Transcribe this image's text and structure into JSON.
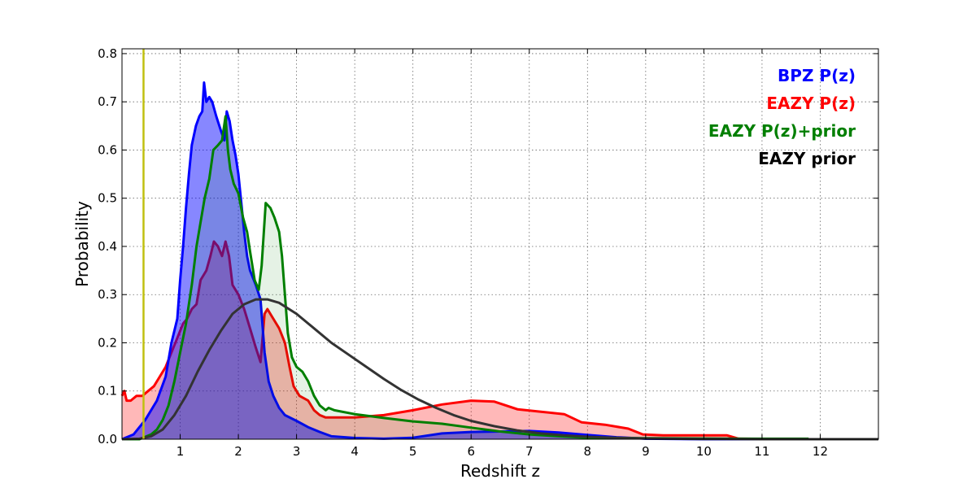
{
  "chart_data": {
    "type": "area",
    "title": "",
    "xlabel": "Redshift z",
    "ylabel": "Probability",
    "xlim": [
      0,
      13
    ],
    "ylim": [
      0,
      0.81
    ],
    "grid": true,
    "legend_position": "top-right",
    "x_ticks": [
      1,
      2,
      3,
      4,
      5,
      6,
      7,
      8,
      9,
      10,
      11,
      12
    ],
    "y_ticks": [
      0.0,
      0.1,
      0.2,
      0.3,
      0.4,
      0.5,
      0.6,
      0.7,
      0.8
    ],
    "x_tick_labels": [
      "1",
      "2",
      "3",
      "4",
      "5",
      "6",
      "7",
      "8",
      "9",
      "10",
      "11",
      "12"
    ],
    "y_tick_labels": [
      "0.0",
      "0.1",
      "0.2",
      "0.3",
      "0.4",
      "0.5",
      "0.6",
      "0.7",
      "0.8"
    ],
    "vline": {
      "x": 0.37,
      "color": "#c0c010"
    },
    "series": [
      {
        "name": "EAZY P(z)",
        "color": "#ff0000",
        "fill": "#ff0000",
        "fill_opacity": 0.28,
        "points": [
          [
            0,
            0.09
          ],
          [
            0.04,
            0.1
          ],
          [
            0.08,
            0.08
          ],
          [
            0.15,
            0.08
          ],
          [
            0.25,
            0.09
          ],
          [
            0.35,
            0.09
          ],
          [
            0.45,
            0.1
          ],
          [
            0.55,
            0.11
          ],
          [
            0.65,
            0.13
          ],
          [
            0.75,
            0.15
          ],
          [
            0.85,
            0.18
          ],
          [
            0.95,
            0.21
          ],
          [
            1.05,
            0.24
          ],
          [
            1.12,
            0.25
          ],
          [
            1.2,
            0.27
          ],
          [
            1.28,
            0.28
          ],
          [
            1.35,
            0.33
          ],
          [
            1.45,
            0.35
          ],
          [
            1.52,
            0.38
          ],
          [
            1.58,
            0.41
          ],
          [
            1.65,
            0.4
          ],
          [
            1.72,
            0.38
          ],
          [
            1.78,
            0.41
          ],
          [
            1.84,
            0.38
          ],
          [
            1.9,
            0.32
          ],
          [
            2.0,
            0.3
          ],
          [
            2.1,
            0.27
          ],
          [
            2.2,
            0.23
          ],
          [
            2.3,
            0.19
          ],
          [
            2.38,
            0.16
          ],
          [
            2.45,
            0.26
          ],
          [
            2.5,
            0.27
          ],
          [
            2.6,
            0.25
          ],
          [
            2.7,
            0.23
          ],
          [
            2.8,
            0.2
          ],
          [
            2.88,
            0.15
          ],
          [
            2.95,
            0.11
          ],
          [
            3.05,
            0.09
          ],
          [
            3.2,
            0.08
          ],
          [
            3.3,
            0.06
          ],
          [
            3.4,
            0.05
          ],
          [
            3.5,
            0.045
          ],
          [
            3.6,
            0.045
          ],
          [
            4.0,
            0.045
          ],
          [
            4.5,
            0.05
          ],
          [
            5.0,
            0.06
          ],
          [
            5.5,
            0.072
          ],
          [
            6.0,
            0.08
          ],
          [
            6.4,
            0.078
          ],
          [
            6.8,
            0.062
          ],
          [
            7.2,
            0.057
          ],
          [
            7.6,
            0.052
          ],
          [
            7.9,
            0.035
          ],
          [
            8.3,
            0.03
          ],
          [
            8.7,
            0.022
          ],
          [
            8.95,
            0.01
          ],
          [
            9.3,
            0.008
          ],
          [
            10.4,
            0.008
          ],
          [
            10.6,
            0.001
          ],
          [
            11.8,
            0.0
          ]
        ]
      },
      {
        "name": "BPZ P(z)",
        "color": "#0000ff",
        "fill": "#0000ff",
        "fill_opacity": 0.47,
        "points": [
          [
            0,
            0.0
          ],
          [
            0.2,
            0.01
          ],
          [
            0.4,
            0.04
          ],
          [
            0.6,
            0.08
          ],
          [
            0.75,
            0.13
          ],
          [
            0.85,
            0.2
          ],
          [
            0.95,
            0.25
          ],
          [
            1.0,
            0.33
          ],
          [
            1.05,
            0.4
          ],
          [
            1.1,
            0.48
          ],
          [
            1.15,
            0.55
          ],
          [
            1.2,
            0.61
          ],
          [
            1.27,
            0.65
          ],
          [
            1.33,
            0.67
          ],
          [
            1.38,
            0.68
          ],
          [
            1.41,
            0.74
          ],
          [
            1.45,
            0.7
          ],
          [
            1.5,
            0.71
          ],
          [
            1.55,
            0.7
          ],
          [
            1.62,
            0.67
          ],
          [
            1.7,
            0.64
          ],
          [
            1.76,
            0.62
          ],
          [
            1.8,
            0.68
          ],
          [
            1.85,
            0.66
          ],
          [
            1.9,
            0.62
          ],
          [
            1.95,
            0.59
          ],
          [
            2.0,
            0.55
          ],
          [
            2.05,
            0.49
          ],
          [
            2.1,
            0.43
          ],
          [
            2.15,
            0.38
          ],
          [
            2.2,
            0.35
          ],
          [
            2.3,
            0.32
          ],
          [
            2.38,
            0.29
          ],
          [
            2.45,
            0.18
          ],
          [
            2.52,
            0.12
          ],
          [
            2.6,
            0.09
          ],
          [
            2.7,
            0.065
          ],
          [
            2.8,
            0.05
          ],
          [
            3.0,
            0.038
          ],
          [
            3.2,
            0.025
          ],
          [
            3.4,
            0.015
          ],
          [
            3.6,
            0.006
          ],
          [
            4.0,
            0.0025
          ],
          [
            4.5,
            0.001
          ],
          [
            5.0,
            0.003
          ],
          [
            5.5,
            0.012
          ],
          [
            6.0,
            0.015
          ],
          [
            6.5,
            0.016
          ],
          [
            7.0,
            0.017
          ],
          [
            7.5,
            0.014
          ],
          [
            8.0,
            0.009
          ],
          [
            8.5,
            0.004
          ],
          [
            9.0,
            0.001
          ],
          [
            10.0,
            0.0
          ],
          [
            13.0,
            0.0
          ]
        ]
      },
      {
        "name": "EAZY P(z)+prior",
        "color": "#007f00",
        "fill": "#007f00",
        "fill_opacity": 0.1,
        "points": [
          [
            0,
            0.0
          ],
          [
            0.3,
            0.0
          ],
          [
            0.5,
            0.01
          ],
          [
            0.6,
            0.02
          ],
          [
            0.7,
            0.04
          ],
          [
            0.8,
            0.07
          ],
          [
            0.9,
            0.12
          ],
          [
            1.0,
            0.18
          ],
          [
            1.1,
            0.24
          ],
          [
            1.2,
            0.32
          ],
          [
            1.28,
            0.4
          ],
          [
            1.35,
            0.45
          ],
          [
            1.42,
            0.5
          ],
          [
            1.5,
            0.54
          ],
          [
            1.57,
            0.6
          ],
          [
            1.65,
            0.61
          ],
          [
            1.72,
            0.62
          ],
          [
            1.78,
            0.67
          ],
          [
            1.82,
            0.6
          ],
          [
            1.86,
            0.56
          ],
          [
            1.92,
            0.53
          ],
          [
            2.0,
            0.51
          ],
          [
            2.08,
            0.46
          ],
          [
            2.15,
            0.43
          ],
          [
            2.2,
            0.39
          ],
          [
            2.28,
            0.33
          ],
          [
            2.35,
            0.31
          ],
          [
            2.4,
            0.36
          ],
          [
            2.47,
            0.49
          ],
          [
            2.55,
            0.48
          ],
          [
            2.62,
            0.46
          ],
          [
            2.7,
            0.43
          ],
          [
            2.75,
            0.38
          ],
          [
            2.8,
            0.3
          ],
          [
            2.85,
            0.22
          ],
          [
            2.92,
            0.17
          ],
          [
            3.0,
            0.15
          ],
          [
            3.1,
            0.14
          ],
          [
            3.2,
            0.12
          ],
          [
            3.3,
            0.09
          ],
          [
            3.4,
            0.07
          ],
          [
            3.5,
            0.06
          ],
          [
            3.55,
            0.065
          ],
          [
            3.65,
            0.06
          ],
          [
            4.0,
            0.052
          ],
          [
            4.5,
            0.044
          ],
          [
            5.0,
            0.037
          ],
          [
            5.5,
            0.032
          ],
          [
            6.0,
            0.024
          ],
          [
            6.5,
            0.016
          ],
          [
            7.0,
            0.01
          ],
          [
            7.5,
            0.006
          ],
          [
            8.0,
            0.003
          ],
          [
            9.0,
            0.002
          ],
          [
            10.0,
            0.0015
          ],
          [
            11.0,
            0.001
          ],
          [
            11.8,
            0.001
          ]
        ]
      },
      {
        "name": "EAZY prior",
        "color": "#333333",
        "fill": "none",
        "fill_opacity": 0,
        "points": [
          [
            0,
            0.0
          ],
          [
            0.3,
            0.001
          ],
          [
            0.5,
            0.006
          ],
          [
            0.7,
            0.02
          ],
          [
            0.9,
            0.05
          ],
          [
            1.1,
            0.09
          ],
          [
            1.3,
            0.14
          ],
          [
            1.5,
            0.185
          ],
          [
            1.7,
            0.225
          ],
          [
            1.9,
            0.26
          ],
          [
            2.1,
            0.28
          ],
          [
            2.3,
            0.29
          ],
          [
            2.5,
            0.29
          ],
          [
            2.7,
            0.283
          ],
          [
            3.0,
            0.26
          ],
          [
            3.3,
            0.23
          ],
          [
            3.6,
            0.2
          ],
          [
            3.9,
            0.175
          ],
          [
            4.2,
            0.15
          ],
          [
            4.5,
            0.125
          ],
          [
            4.8,
            0.102
          ],
          [
            5.1,
            0.082
          ],
          [
            5.4,
            0.065
          ],
          [
            5.7,
            0.05
          ],
          [
            6.0,
            0.038
          ],
          [
            6.4,
            0.027
          ],
          [
            6.8,
            0.018
          ],
          [
            7.2,
            0.012
          ],
          [
            7.6,
            0.008
          ],
          [
            8.0,
            0.005
          ],
          [
            8.5,
            0.003
          ],
          [
            9.0,
            0.0015
          ],
          [
            10.0,
            0.0005
          ],
          [
            11.0,
            0.0
          ],
          [
            13.0,
            0.0
          ]
        ]
      }
    ],
    "legend": [
      {
        "label": "BPZ P(z)",
        "color": "#0000ff"
      },
      {
        "label": "EAZY P(z)",
        "color": "#ff0000"
      },
      {
        "label": "EAZY P(z)+prior",
        "color": "#007f00"
      },
      {
        "label": "EAZY prior",
        "color": "#000000"
      }
    ]
  }
}
